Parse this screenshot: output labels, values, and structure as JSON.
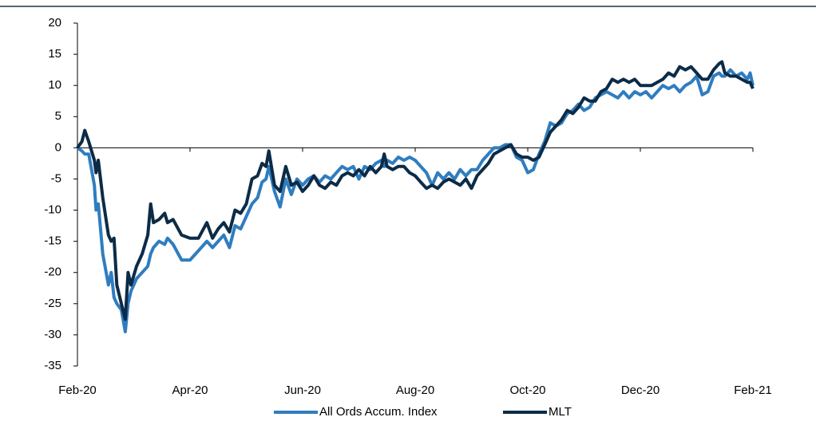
{
  "chart_data": {
    "type": "line",
    "x": [
      0,
      0.08,
      0.13,
      0.2,
      0.3,
      0.33,
      0.37,
      0.45,
      0.55,
      0.6,
      0.65,
      0.7,
      0.78,
      0.85,
      0.9,
      0.95,
      1.05,
      1.15,
      1.25,
      1.3,
      1.35,
      1.45,
      1.55,
      1.6,
      1.7,
      1.85,
      2.0,
      2.15,
      2.3,
      2.4,
      2.5,
      2.6,
      2.7,
      2.8,
      2.9,
      3.0,
      3.1,
      3.2,
      3.28,
      3.35,
      3.4,
      3.5,
      3.6,
      3.7,
      3.8,
      3.9,
      4.0,
      4.1,
      4.2,
      4.3,
      4.4,
      4.5,
      4.6,
      4.7,
      4.8,
      4.9,
      5.0,
      5.1,
      5.2,
      5.3,
      5.4,
      5.45,
      5.5,
      5.6,
      5.7,
      5.8,
      5.9,
      6.0,
      6.1,
      6.2,
      6.3,
      6.4,
      6.5,
      6.6,
      6.7,
      6.8,
      6.9,
      7.0,
      7.1,
      7.2,
      7.3,
      7.4,
      7.5,
      7.6,
      7.7,
      7.8,
      7.9,
      8.0,
      8.1,
      8.2,
      8.3,
      8.4,
      8.5,
      8.6,
      8.7,
      8.8,
      8.9,
      9.0,
      9.1,
      9.2,
      9.3,
      9.4,
      9.5,
      9.6,
      9.7,
      9.8,
      9.9,
      10.0,
      10.1,
      10.2,
      10.3,
      10.4,
      10.5,
      10.6,
      10.7,
      10.8,
      10.9,
      11.0,
      11.1,
      11.2,
      11.3,
      11.4,
      11.45,
      11.5,
      11.6,
      11.7,
      11.8,
      11.9,
      11.95,
      12.0
    ],
    "series": [
      {
        "name": "All Ords Accum. Index",
        "color": "#2f7dc0",
        "values": [
          0,
          -0.5,
          -1,
          -1,
          -6,
          -10,
          -9,
          -17,
          -22,
          -20,
          -24,
          -25,
          -26,
          -29.5,
          -25,
          -23,
          -21,
          -20,
          -19,
          -17,
          -16,
          -15,
          -15.5,
          -14.5,
          -15.5,
          -18,
          -18,
          -16.5,
          -15,
          -16,
          -15,
          -14,
          -16,
          -12.5,
          -13,
          -11,
          -9,
          -8,
          -5.5,
          -5,
          -3,
          -7,
          -9.5,
          -5,
          -7.5,
          -5,
          -6,
          -5,
          -4.5,
          -5.5,
          -4.5,
          -5,
          -4,
          -3,
          -3.5,
          -3,
          -5,
          -3,
          -3.5,
          -2.5,
          -2,
          -3,
          -2,
          -2.5,
          -1.5,
          -2,
          -1.5,
          -2,
          -3,
          -4,
          -6,
          -4,
          -5,
          -4,
          -5,
          -3.5,
          -4.5,
          -3.5,
          -3.5,
          -2,
          -1,
          0,
          0,
          0.5,
          0.5,
          -1.5,
          -2,
          -4,
          -3.5,
          -1,
          1,
          4,
          3.5,
          4,
          5.5,
          6,
          7,
          6,
          6.5,
          8,
          8.5,
          9,
          8.5,
          8,
          9,
          8,
          9,
          8.5,
          9,
          8,
          9,
          10,
          9.5,
          10,
          9,
          10,
          10.5,
          11.5,
          8.5,
          9,
          11.5,
          12,
          11.5,
          11.5,
          12.5,
          11.5,
          12,
          11,
          12,
          10
        ]
      },
      {
        "name": "MLT",
        "color": "#0c2b47",
        "values": [
          0,
          1,
          2.8,
          1,
          -2,
          -4,
          -2,
          -8,
          -14,
          -15,
          -14.5,
          -22,
          -25,
          -27.5,
          -20,
          -22,
          -19,
          -17,
          -14,
          -9,
          -12,
          -11.5,
          -10.5,
          -12,
          -11.5,
          -14,
          -14.5,
          -14.5,
          -12,
          -14.5,
          -13,
          -12,
          -13.5,
          -10,
          -10.5,
          -9,
          -5,
          -4.5,
          -2.5,
          -3,
          -0.5,
          -6,
          -7,
          -3,
          -6,
          -5.5,
          -7,
          -6,
          -4.5,
          -6,
          -6.5,
          -5.5,
          -6,
          -4.5,
          -4,
          -4.5,
          -3.5,
          -4.5,
          -3,
          -4,
          -3,
          -1,
          -3,
          -3.5,
          -3,
          -3,
          -4,
          -4.5,
          -5.5,
          -6.5,
          -6,
          -6.5,
          -5.5,
          -5,
          -5.5,
          -6,
          -5,
          -6.5,
          -4.5,
          -3.5,
          -2.5,
          -1,
          -0.5,
          0,
          0.5,
          -1,
          -1.5,
          -1.5,
          -2,
          -1.5,
          0.5,
          2.5,
          3.5,
          4.5,
          6,
          5.5,
          6.5,
          8,
          7.5,
          7.5,
          9,
          9.5,
          11,
          10.5,
          11,
          10.5,
          11,
          10,
          10,
          10,
          10.5,
          11,
          12,
          11.5,
          13,
          12.5,
          13,
          12,
          11,
          11,
          12.5,
          13.5,
          13.8,
          12,
          11.5,
          11.5,
          11,
          10.5,
          10.5,
          9.5
        ]
      }
    ],
    "xlim": [
      0,
      12
    ],
    "xticks": [
      {
        "value": 0,
        "label": "Feb-20"
      },
      {
        "value": 2,
        "label": "Apr-20"
      },
      {
        "value": 4,
        "label": "Jun-20"
      },
      {
        "value": 6,
        "label": "Aug-20"
      },
      {
        "value": 8,
        "label": "Oct-20"
      },
      {
        "value": 10,
        "label": "Dec-20"
      },
      {
        "value": 12,
        "label": "Feb-21"
      }
    ],
    "ylim": [
      -35,
      20
    ],
    "yticks": [
      -35,
      -30,
      -25,
      -20,
      -15,
      -10,
      -5,
      0,
      5,
      10,
      15,
      20
    ],
    "legend": "bottom"
  }
}
